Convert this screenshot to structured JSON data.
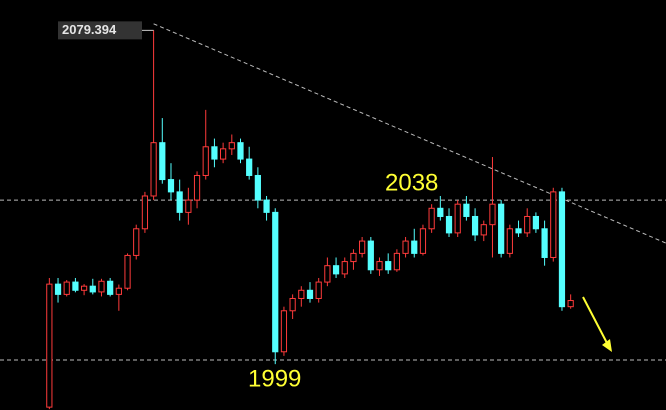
{
  "chart_data": {
    "type": "candlestick",
    "open": [
      1987.5,
      2017.5,
      2015,
      2018,
      2016,
      2017,
      2015.6,
      2018.2,
      2015,
      2016.5,
      2024.5,
      2031,
      2039,
      2052,
      2043,
      2040,
      2035,
      2038,
      2044,
      2051,
      2048,
      2050.5,
      2052,
      2048,
      2044,
      2038,
      2035,
      2001,
      2011,
      2014,
      2016,
      2014,
      2018,
      2022,
      2020,
      2023,
      2025,
      2028,
      2021,
      2023,
      2021,
      2025,
      2028,
      2025,
      2031,
      2036,
      2034,
      2030,
      2037,
      2034,
      2029.5,
      2032,
      2037,
      2025,
      2031,
      2030,
      2034,
      2031,
      2024,
      2040,
      2012
    ],
    "high": [
      2019,
      2019,
      2018.5,
      2019,
      2017.5,
      2018.8,
      2018.8,
      2019,
      2017.4,
      2025,
      2032,
      2040,
      2079.394,
      2058,
      2047,
      2043,
      2041,
      2045,
      2060,
      2053,
      2052,
      2054,
      2053,
      2051,
      2046,
      2039,
      2036,
      2012,
      2015,
      2017,
      2018,
      2019,
      2024,
      2024,
      2024,
      2026,
      2029,
      2029,
      2024,
      2025,
      2026,
      2029,
      2031,
      2032,
      2037,
      2039,
      2036,
      2038,
      2039,
      2036,
      2033,
      2048.5,
      2038,
      2032,
      2033,
      2036,
      2035,
      2033,
      2041,
      2041,
      2015
    ],
    "low": [
      1987,
      2013,
      2014.5,
      2015.5,
      2014.8,
      2015,
      2014.5,
      2014.5,
      2011,
      2016,
      2023.5,
      2030,
      2038,
      2042,
      2038,
      2033,
      2032,
      2036,
      2043,
      2046,
      2047,
      2049,
      2047,
      2043,
      2036,
      2033,
      1998,
      2000,
      2009,
      2012,
      2013,
      2013,
      2017,
      2019,
      2019,
      2021,
      2024,
      2020,
      2019.5,
      2020,
      2020.5,
      2024,
      2024,
      2024.5,
      2030,
      2033,
      2029,
      2029,
      2033,
      2028,
      2028,
      2024,
      2024,
      2024,
      2029,
      2029,
      2030,
      2022,
      2023,
      2011,
      2011.5
    ],
    "close": [
      2017.5,
      2015,
      2018,
      2016,
      2017,
      2015.6,
      2018.2,
      2015,
      2016.5,
      2024.5,
      2031,
      2039,
      2052,
      2043,
      2040,
      2035,
      2038,
      2044,
      2051,
      2048,
      2050.5,
      2052,
      2048,
      2044,
      2038,
      2035,
      2001,
      2011,
      2014,
      2016,
      2014,
      2018,
      2022,
      2020,
      2023,
      2025,
      2028,
      2021,
      2023,
      2021,
      2025,
      2028,
      2025,
      2031,
      2036,
      2034,
      2030,
      2037,
      2034,
      2029.5,
      2032,
      2037,
      2025,
      2031,
      2030,
      2034,
      2031,
      2024,
      2040,
      2012,
      2013.5
    ],
    "up_color": "#ff3b3b",
    "down_color": "#54ffff",
    "levels": [
      2038,
      1999
    ],
    "level_color": "#ffff33",
    "trend_line": [
      2081,
      2027.5
    ],
    "ylim": [
      1986.8,
      2086.8
    ]
  }
}
